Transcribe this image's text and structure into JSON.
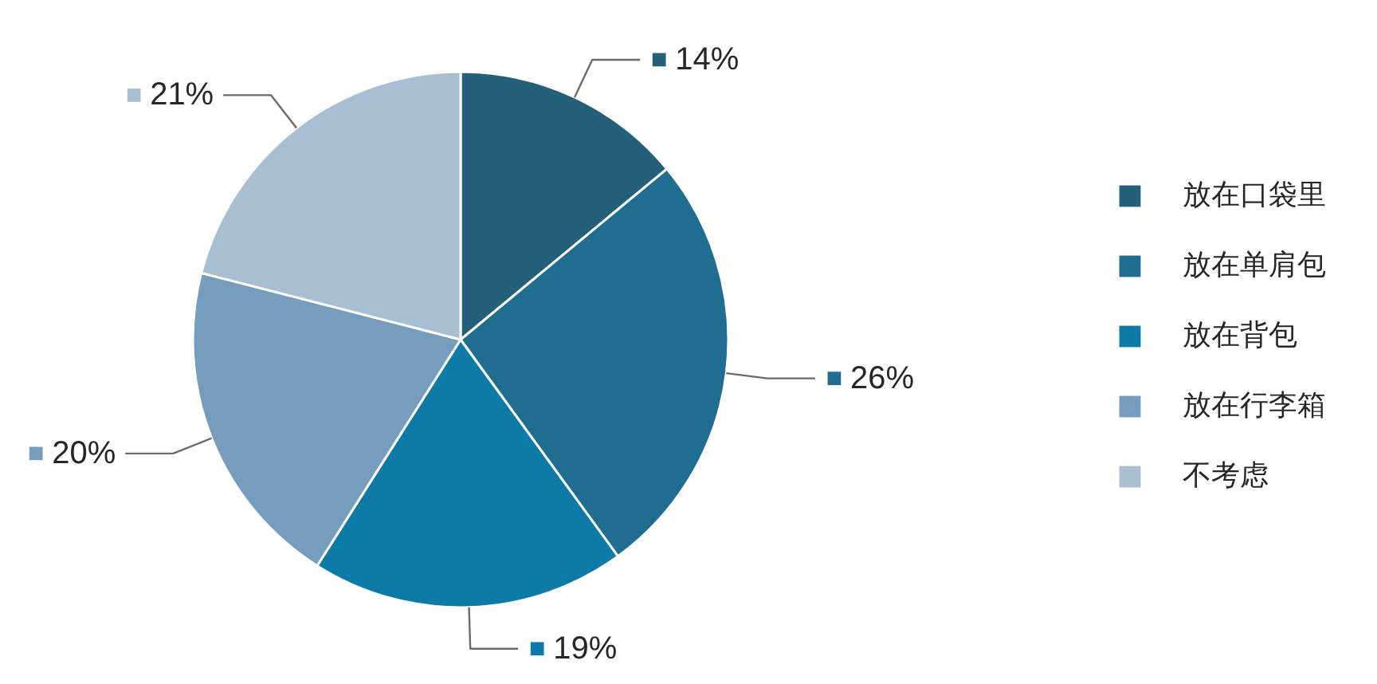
{
  "chart_data": {
    "type": "pie",
    "categories": [
      "放在口袋里",
      "放在单肩包",
      "放在背包",
      "放在行李箱",
      "不考虑"
    ],
    "values": [
      14,
      26,
      19,
      20,
      21
    ],
    "colors": [
      "#25607b",
      "#1f6e92",
      "#0d7aa8",
      "#769dbe",
      "#a8bfd3"
    ],
    "value_labels": [
      "14%",
      "26%",
      "19%",
      "20%",
      "21%"
    ],
    "legend": "right"
  }
}
